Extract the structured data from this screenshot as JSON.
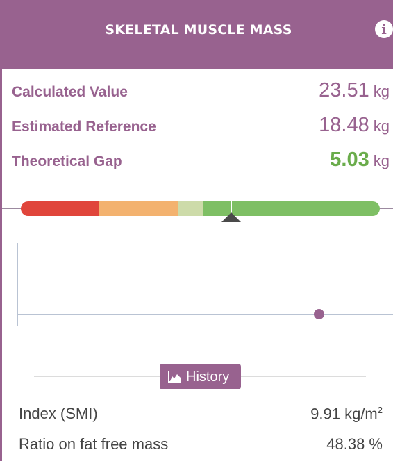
{
  "header": {
    "title": "SKELETAL MUSCLE MASS",
    "info_icon": "info-icon"
  },
  "metrics": [
    {
      "label": "Calculated Value",
      "value": "23.51",
      "unit": "kg"
    },
    {
      "label": "Estimated Reference",
      "value": "18.48",
      "unit": "kg"
    },
    {
      "label": "Theoretical Gap",
      "value": "5.03",
      "unit": "kg"
    }
  ],
  "colors": {
    "brand": "#98628f",
    "gap_value": "#6aac4b",
    "scale": [
      "#e0453b",
      "#f3b26f",
      "#cddba9",
      "#7ebf64"
    ]
  },
  "history": {
    "label": "History",
    "icon": "area-chart-icon"
  },
  "stats": [
    {
      "label": "Index (SMI)",
      "value": "9.91 kg/m",
      "sup": "2"
    },
    {
      "label": "Ratio on fat free mass",
      "value": "48.38 %"
    }
  ]
}
